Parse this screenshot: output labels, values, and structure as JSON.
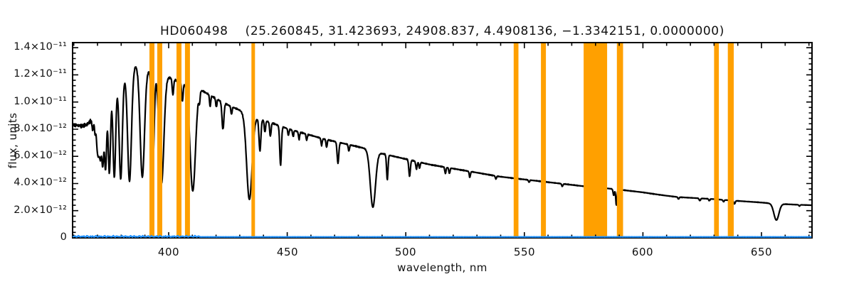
{
  "header": {
    "star_id": "HD060498",
    "params_display": "(25.260845, 31.423693, 24908.837, 4.4908136, −1.3342151, 0.0000000)",
    "param_values": [
      25.260845,
      31.423693,
      24908.837,
      4.4908136,
      -1.3342151,
      0.0
    ]
  },
  "chart_data": {
    "type": "line",
    "title": "HD060498    (25.260845, 31.423693, 24908.837, 4.4908136, −1.3342151, 0.0000000)",
    "xlabel": "wavelength, nm",
    "ylabel": "flux, units",
    "xlim": [
      359.5,
      671.3
    ],
    "ylim": [
      0,
      1.4375e-11
    ],
    "x_ticks": [
      400,
      450,
      500,
      550,
      600,
      650
    ],
    "x_minor_step_nm": 10,
    "y_ticks": [
      0,
      2e-12,
      4e-12,
      6e-12,
      8e-12,
      1e-11,
      1.2e-11,
      1.4e-11
    ],
    "y_tick_labels": [
      "0",
      "2.0×10⁻¹²",
      "4.0×10⁻¹²",
      "6.0×10⁻¹²",
      "8.0×10⁻¹²",
      "1.0×10⁻¹¹",
      "1.2×10⁻¹¹",
      "1.4×10⁻¹¹"
    ],
    "y_minor_step": 4e-13,
    "grid": false,
    "legend": false,
    "colors": {
      "spectrum": "#000000",
      "masked_band": "#FFA000",
      "sky": "#1E90FF",
      "axis": "#000000",
      "background": "#FFFFFF"
    },
    "flux_unit": 1e-12,
    "masked_bands_nm": [
      [
        391.9,
        394.0
      ],
      [
        395.2,
        397.3
      ],
      [
        403.3,
        405.4
      ],
      [
        406.9,
        409.0
      ],
      [
        434.9,
        436.4
      ],
      [
        545.5,
        547.5
      ],
      [
        557.0,
        559.1
      ],
      [
        575.0,
        584.9
      ],
      [
        589.0,
        591.6
      ],
      [
        630.0,
        632.0
      ],
      [
        635.8,
        638.3
      ]
    ],
    "series": [
      {
        "name": "stellar-spectrum",
        "role": "spectrum",
        "continuum_points_nm_e12": [
          [
            359.5,
            8.3
          ],
          [
            362,
            8.28
          ],
          [
            364,
            8.25
          ],
          [
            365.5,
            8.35
          ],
          [
            367,
            8.6
          ],
          [
            369,
            9.0
          ],
          [
            371,
            9.5
          ],
          [
            373,
            10.0
          ],
          [
            375,
            10.6
          ],
          [
            377,
            11.1
          ],
          [
            379,
            11.5
          ],
          [
            381,
            11.9
          ],
          [
            383,
            12.15
          ],
          [
            385,
            12.45
          ],
          [
            386,
            12.7
          ],
          [
            388,
            12.5
          ],
          [
            390,
            12.3
          ],
          [
            392,
            12.35
          ],
          [
            394,
            12.3
          ],
          [
            396,
            12.2
          ],
          [
            398,
            12.05
          ],
          [
            400,
            11.85
          ],
          [
            403,
            11.6
          ],
          [
            406,
            11.4
          ],
          [
            410,
            11.15
          ],
          [
            414,
            10.85
          ],
          [
            418,
            10.45
          ],
          [
            422,
            10.05
          ],
          [
            426,
            9.7
          ],
          [
            430,
            9.4
          ],
          [
            434,
            9.1
          ],
          [
            438,
            8.8
          ],
          [
            442,
            8.55
          ],
          [
            446,
            8.3
          ],
          [
            450,
            8.05
          ],
          [
            455,
            7.8
          ],
          [
            460,
            7.55
          ],
          [
            465,
            7.3
          ],
          [
            470,
            7.1
          ],
          [
            475,
            6.9
          ],
          [
            480,
            6.7
          ],
          [
            486,
            6.45
          ],
          [
            490,
            6.2
          ],
          [
            495,
            6.0
          ],
          [
            500,
            5.8
          ],
          [
            505,
            5.6
          ],
          [
            510,
            5.4
          ],
          [
            515,
            5.25
          ],
          [
            520,
            5.1
          ],
          [
            525,
            4.95
          ],
          [
            530,
            4.8
          ],
          [
            535,
            4.65
          ],
          [
            540,
            4.5
          ],
          [
            545,
            4.4
          ],
          [
            550,
            4.3
          ],
          [
            555,
            4.2
          ],
          [
            560,
            4.1
          ],
          [
            565,
            4.0
          ],
          [
            570,
            3.9
          ],
          [
            575,
            3.8
          ],
          [
            580,
            3.72
          ],
          [
            585,
            3.64
          ],
          [
            590,
            3.55
          ],
          [
            595,
            3.45
          ],
          [
            600,
            3.35
          ],
          [
            605,
            3.22
          ],
          [
            610,
            3.1
          ],
          [
            615,
            3.0
          ],
          [
            620,
            2.95
          ],
          [
            625,
            2.9
          ],
          [
            630,
            2.85
          ],
          [
            635,
            2.78
          ],
          [
            640,
            2.72
          ],
          [
            645,
            2.66
          ],
          [
            650,
            2.6
          ],
          [
            655,
            2.52
          ],
          [
            660,
            2.48
          ],
          [
            665,
            2.44
          ],
          [
            671.3,
            2.4
          ]
        ],
        "absorption_lines_nm_depth_sigma": [
          [
            368.0,
            0.1,
            0.3
          ],
          [
            369.0,
            0.15,
            0.3
          ],
          [
            369.8,
            0.22,
            0.32
          ],
          [
            370.4,
            0.28,
            0.35
          ],
          [
            371.2,
            0.36,
            0.4
          ],
          [
            372.2,
            0.44,
            0.42
          ],
          [
            373.4,
            0.5,
            0.45
          ],
          [
            375.0,
            0.55,
            0.48
          ],
          [
            377.1,
            0.6,
            0.55
          ],
          [
            379.8,
            0.63,
            0.65
          ],
          [
            383.5,
            0.66,
            0.8
          ],
          [
            388.9,
            0.64,
            0.9
          ],
          [
            393.37,
            0.55,
            0.55
          ],
          [
            397.0,
            0.67,
            1.0
          ],
          [
            401.8,
            0.1,
            0.3
          ],
          [
            405.8,
            0.12,
            0.3
          ],
          [
            410.17,
            0.69,
            1.15
          ],
          [
            413.0,
            0.07,
            0.25
          ],
          [
            417.5,
            0.08,
            0.25
          ],
          [
            420.1,
            0.06,
            0.25
          ],
          [
            422.9,
            0.2,
            0.4
          ],
          [
            426.5,
            0.06,
            0.25
          ],
          [
            434.05,
            0.69,
            1.15
          ],
          [
            438.5,
            0.27,
            0.4
          ],
          [
            440.6,
            0.1,
            0.28
          ],
          [
            442.9,
            0.12,
            0.3
          ],
          [
            447.2,
            0.35,
            0.35
          ],
          [
            450.5,
            0.06,
            0.25
          ],
          [
            452.5,
            0.06,
            0.25
          ],
          [
            455.0,
            0.07,
            0.25
          ],
          [
            458.2,
            0.06,
            0.25
          ],
          [
            464.5,
            0.07,
            0.25
          ],
          [
            466.6,
            0.08,
            0.25
          ],
          [
            471.4,
            0.22,
            0.35
          ],
          [
            476.0,
            0.07,
            0.25
          ],
          [
            486.13,
            0.65,
            1.1
          ],
          [
            492.2,
            0.3,
            0.3
          ],
          [
            501.6,
            0.21,
            0.32
          ],
          [
            504.5,
            0.1,
            0.28
          ],
          [
            505.8,
            0.08,
            0.25
          ],
          [
            516.7,
            0.09,
            0.25
          ],
          [
            518.4,
            0.08,
            0.25
          ],
          [
            527.0,
            0.09,
            0.25
          ],
          [
            538.0,
            0.05,
            0.25
          ],
          [
            552.0,
            0.04,
            0.25
          ],
          [
            566.0,
            0.05,
            0.25
          ],
          [
            587.7,
            0.13,
            0.28
          ],
          [
            588.8,
            0.33,
            0.26
          ],
          [
            615.0,
            0.05,
            0.25
          ],
          [
            624.0,
            0.06,
            0.3
          ],
          [
            628.0,
            0.05,
            0.25
          ],
          [
            634.0,
            0.05,
            0.25
          ],
          [
            638.6,
            0.09,
            0.3
          ],
          [
            656.28,
            0.48,
            1.05
          ],
          [
            666.0,
            0.04,
            0.25
          ]
        ],
        "noise_amplitude_frac": 0.008,
        "noise_amplitude_frac_below_368nm": 0.022
      },
      {
        "name": "sky-background",
        "role": "sky",
        "base_level_e12": 0.06,
        "wiggle_max_e12": 0.1,
        "wiggle_below_nm": 413
      }
    ]
  }
}
